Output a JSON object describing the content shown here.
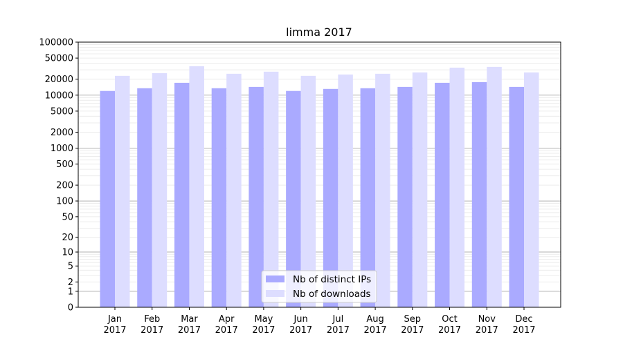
{
  "chart_data": {
    "type": "bar",
    "title": "limma 2017",
    "xlabel": "",
    "ylabel": "",
    "yscale": "log10(y+1)",
    "ylim": [
      0,
      100000
    ],
    "yticks": [
      0,
      1,
      2,
      5,
      10,
      20,
      50,
      100,
      200,
      500,
      1000,
      2000,
      5000,
      10000,
      20000,
      50000,
      100000
    ],
    "grid": true,
    "legend_position": "bottom-center",
    "categories": [
      "Jan\n2017",
      "Feb\n2017",
      "Mar\n2017",
      "Apr\n2017",
      "May\n2017",
      "Jun\n2017",
      "Jul\n2017",
      "Aug\n2017",
      "Sep\n2017",
      "Oct\n2017",
      "Nov\n2017",
      "Dec\n2017"
    ],
    "series": [
      {
        "name": "Nb of distinct IPs",
        "color": "#aaaaff",
        "values": [
          12000,
          13500,
          17100,
          13500,
          14300,
          12000,
          13100,
          13500,
          14300,
          17100,
          17600,
          14300
        ]
      },
      {
        "name": "Nb of downloads",
        "color": "#ddddff",
        "values": [
          23100,
          26000,
          35100,
          25300,
          27700,
          23100,
          24500,
          25300,
          26800,
          33000,
          34100,
          26800
        ]
      }
    ]
  }
}
